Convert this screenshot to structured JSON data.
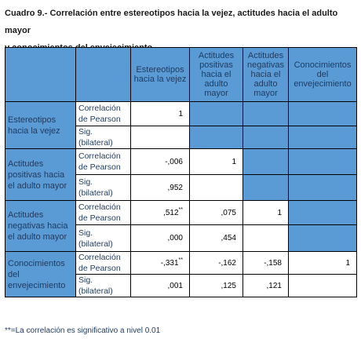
{
  "caption": {
    "line1": "Cuadro 9.- Correlación entre estereotipos hacia la vejez, actitudes hacia el adulto mayor",
    "line2": "y conocimientos del envejecimiento."
  },
  "headers": [
    "Estereotipos hacia la vejez",
    "Actitudes positivas hacia el adulto mayor",
    "Actitudes negativas hacia el adulto mayor",
    "Conocimientos del envejecimiento"
  ],
  "stat_labels": {
    "pearson": "Correlación de Pearson",
    "sig": "Sig. (bilateral)"
  },
  "rows": [
    {
      "label": "Estereotipos hacia la vejez",
      "pearson": [
        "1",
        "",
        "",
        ""
      ],
      "pearson_sup": [
        "",
        "",
        "",
        ""
      ],
      "sig": [
        "",
        "",
        "",
        ""
      ]
    },
    {
      "label": "Actitudes positivas hacia el adulto mayor",
      "pearson": [
        "-,006",
        "1",
        "",
        ""
      ],
      "pearson_sup": [
        "",
        "",
        "",
        ""
      ],
      "sig": [
        ",952",
        "",
        "",
        ""
      ]
    },
    {
      "label": "Actitudes negativas hacia el adulto mayor",
      "pearson": [
        ",512",
        ",075",
        "1",
        ""
      ],
      "pearson_sup": [
        "**",
        "",
        "",
        ""
      ],
      "sig": [
        ",000",
        ",454",
        "",
        ""
      ]
    },
    {
      "label": "Conocimientos del envejecimiento",
      "pearson": [
        "-,331",
        "-,162",
        "-,158",
        "1"
      ],
      "pearson_sup": [
        "**",
        "",
        "",
        ""
      ],
      "sig": [
        ",001",
        ",125",
        ",121",
        ""
      ]
    }
  ],
  "footnote": "**=La correlación es significativo a nivel 0.01",
  "colors": {
    "cell_fill": "#5b9bd5",
    "text": "#1f3a5f"
  }
}
